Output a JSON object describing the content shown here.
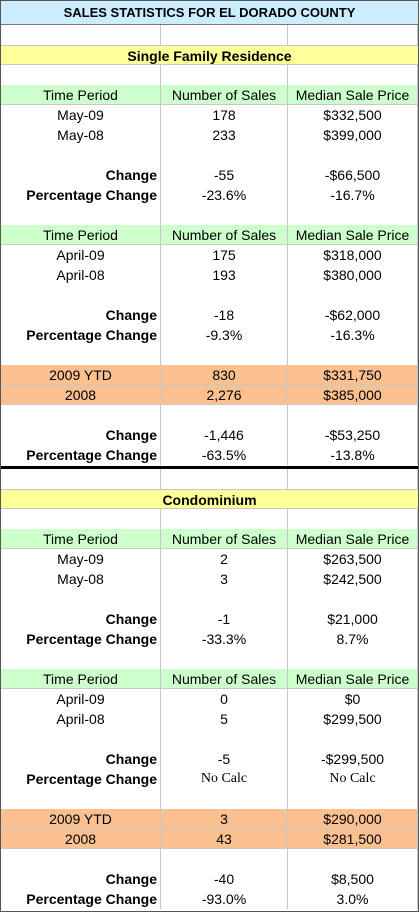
{
  "title": "SALES STATISTICS FOR EL DORADO COUNTY",
  "heading_color": "#ffff99",
  "sections": [
    {
      "heading": "Single Family Residence",
      "blocks": [
        {
          "header": [
            "Time Period",
            "Number of Sales",
            "Median Sale Price"
          ],
          "color": "#ccffcc",
          "rows": [
            [
              "May-09",
              "178",
              "$332,500"
            ],
            [
              "May-08",
              "233",
              "$399,000"
            ]
          ],
          "change": [
            "Change",
            "-55",
            "-$66,500"
          ],
          "percentage_change": [
            "Percentage Change",
            "-23.6%",
            "-16.7%"
          ]
        },
        {
          "header": [
            "Time Period",
            "Number of Sales",
            "Median Sale Price"
          ],
          "color": "#ccffcc",
          "rows": [
            [
              "April-09",
              "175",
              "$318,000"
            ],
            [
              "April-08",
              "193",
              "$380,000"
            ]
          ],
          "change": [
            "Change",
            "-18",
            "-$62,000"
          ],
          "percentage_change": [
            "Percentage Change",
            "-9.3%",
            "-16.3%"
          ]
        },
        {
          "color": "#fac090",
          "rows": [
            [
              "2009 YTD",
              "830",
              "$331,750"
            ],
            [
              "2008",
              "2,276",
              "$385,000"
            ]
          ],
          "change": [
            "Change",
            "-1,446",
            "-$53,250"
          ],
          "percentage_change": [
            "Percentage Change",
            "-63.5%",
            "-13.8%"
          ]
        }
      ]
    },
    {
      "heading": "Condominium",
      "blocks": [
        {
          "header": [
            "Time Period",
            "Number of Sales",
            "Median Sale Price"
          ],
          "color": "#ccffcc",
          "rows": [
            [
              "May-09",
              "2",
              "$263,500"
            ],
            [
              "May-08",
              "3",
              "$242,500"
            ]
          ],
          "change": [
            "Change",
            "-1",
            "$21,000"
          ],
          "percentage_change": [
            "Percentage Change",
            "-33.3%",
            "8.7%"
          ]
        },
        {
          "header": [
            "Time Period",
            "Number of Sales",
            "Median Sale Price"
          ],
          "color": "#ccffcc",
          "rows": [
            [
              "April-09",
              "0",
              "$0"
            ],
            [
              "April-08",
              "5",
              "$299,500"
            ]
          ],
          "change": [
            "Change",
            "-5",
            "-$299,500"
          ],
          "percentage_change": [
            "Percentage Change",
            "No Calc",
            "No Calc"
          ]
        },
        {
          "color": "#fac090",
          "rows": [
            [
              "2009 YTD",
              "3",
              "$290,000"
            ],
            [
              "2008",
              "43",
              "$281,500"
            ]
          ],
          "change": [
            "Change",
            "-40",
            "$8,500"
          ],
          "percentage_change": [
            "Percentage Change",
            "-93.0%",
            "3.0%"
          ]
        }
      ]
    }
  ]
}
